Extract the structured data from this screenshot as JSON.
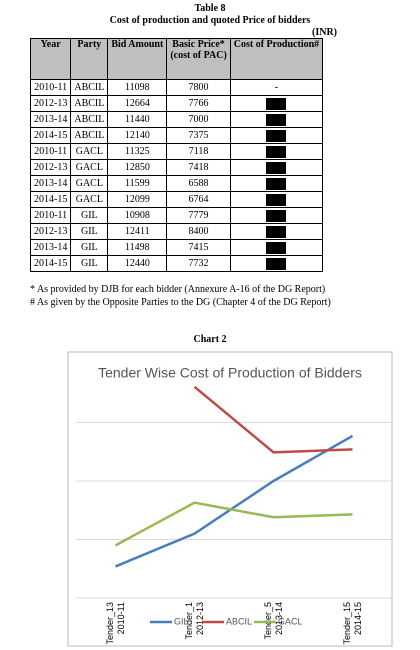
{
  "header": {
    "title": "Table 8",
    "subtitle": "Cost of production and quoted Price of bidders",
    "unit": "(INR)"
  },
  "table": {
    "columns": [
      "Year",
      "Party",
      "Bid Amount",
      "Basic Price*",
      "Cost of Production#"
    ],
    "column_notes": [
      null,
      null,
      null,
      "(cost of PAC)",
      null
    ],
    "rows": [
      [
        "2010-11",
        "ABCIL",
        11098,
        7800,
        "-"
      ],
      [
        "2012-13",
        "ABCIL",
        12664,
        7766,
        null
      ],
      [
        "2013-14",
        "ABCIL",
        11440,
        7000,
        null
      ],
      [
        "2014-15",
        "ABCIL",
        12140,
        7375,
        null
      ],
      [
        "2010-11",
        "GACL",
        11325,
        7118,
        null
      ],
      [
        "2012-13",
        "GACL",
        12850,
        7418,
        null
      ],
      [
        "2013-14",
        "GACL",
        11599,
        6588,
        null
      ],
      [
        "2014-15",
        "GACL",
        12099,
        6764,
        null
      ],
      [
        "2010-11",
        "GIL",
        10908,
        7779,
        null
      ],
      [
        "2012-13",
        "GIL",
        12411,
        8400,
        null
      ],
      [
        "2013-14",
        "GIL",
        11498,
        7415,
        null
      ],
      [
        "2014-15",
        "GIL",
        12440,
        7732,
        null
      ]
    ]
  },
  "footnotes": [
    "* As provided by DJB for each bidder (Annexure A-16 of the DG Report)",
    "# As given by the Opposite Parties to the DG (Chapter 4 of the DG Report)"
  ],
  "chart_caption": "Chart 2",
  "chart_data": {
    "type": "line",
    "title": "Tender Wise Cost of Production of Bidders",
    "categories": [
      "Tender_13",
      "Tender_1",
      "Tender_5",
      "Tender_15"
    ],
    "category_years": [
      "2010-11",
      "2012-13",
      "2013-14",
      "2014-15"
    ],
    "series": [
      {
        "name": "GIL",
        "color": "#4a7ebb",
        "values": [
          0.54,
          1.1,
          2.0,
          2.77
        ]
      },
      {
        "name": "ABCIL",
        "color": "#be4b48",
        "values": [
          null,
          3.61,
          2.49,
          2.54
        ]
      },
      {
        "name": "GACL",
        "color": "#98b954",
        "values": [
          0.9,
          1.63,
          1.38,
          1.43
        ]
      }
    ],
    "ylim": [
      0,
      4
    ],
    "yticks": [
      1,
      2,
      3
    ],
    "grid": true,
    "show_ytick_labels": false,
    "legend": "bottom"
  }
}
